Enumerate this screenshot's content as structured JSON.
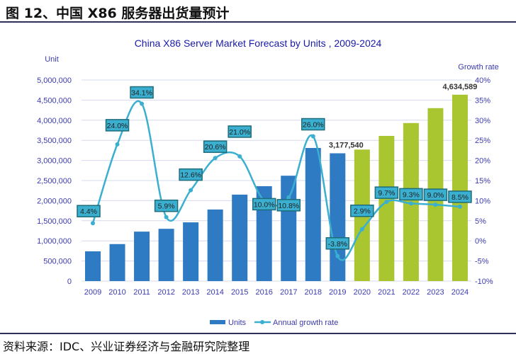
{
  "figure_title": "图 12、中国 X86 服务器出货量预计",
  "source": "资料来源：IDC、兴业证券经济与金融研究院整理",
  "chart_data": {
    "type": "bar+line",
    "title": "China X86 Server Market Forecast by Units , 2009-2024",
    "ylabel": "Unit",
    "y2label": "Growth rate",
    "categories": [
      "2009",
      "2010",
      "2011",
      "2012",
      "2013",
      "2014",
      "2015",
      "2016",
      "2017",
      "2018",
      "2019",
      "2020",
      "2021",
      "2022",
      "2023",
      "2024"
    ],
    "ylim": [
      0,
      5000000
    ],
    "y2lim": [
      -10,
      40
    ],
    "yticks": [
      "0",
      "500,000",
      "1,000,000",
      "1,500,000",
      "2,000,000",
      "2,500,000",
      "3,000,000",
      "3,500,000",
      "4,000,000",
      "4,500,000",
      "5,000,000"
    ],
    "y2ticks": [
      "-10%",
      "-5%",
      "0%",
      "5%",
      "10%",
      "15%",
      "20%",
      "25%",
      "30%",
      "35%",
      "40%"
    ],
    "series": [
      {
        "name": "Units",
        "type": "bar",
        "values": [
          740000,
          920000,
          1230000,
          1300000,
          1460000,
          1780000,
          2150000,
          2360000,
          2620000,
          3310000,
          3177540,
          3270000,
          3610000,
          3930000,
          4300000,
          4634589
        ]
      },
      {
        "name": "Annual growth rate",
        "type": "line",
        "values": [
          4.4,
          24.0,
          34.1,
          5.9,
          12.6,
          20.6,
          21.0,
          10.0,
          10.8,
          26.0,
          -3.8,
          2.9,
          9.7,
          9.3,
          9.0,
          8.5
        ],
        "labels": [
          "4.4%",
          "24.0%",
          "34.1%",
          "5.9%",
          "12.6%",
          "20.6%",
          "21.0%",
          "10.0%",
          "10.8%",
          "26.0%",
          "-3.8%",
          "2.9%",
          "9.7%",
          "9.3%",
          "9.0%",
          "8.5%"
        ]
      }
    ],
    "bar_value_labels": {
      "2019": "3,177,540",
      "2024": "4,634,589"
    },
    "forecast_from": "2020",
    "colors": {
      "actual": "#2E7BC4",
      "forecast": "#A9C530",
      "line": "#3BAFD0",
      "label_box": "#3BAFD0",
      "label_border": "#1D6C7A",
      "axis_text": "#3b3bb0"
    },
    "legend": {
      "placement": "bottom",
      "items": [
        "Units",
        "Annual growth rate"
      ]
    }
  }
}
